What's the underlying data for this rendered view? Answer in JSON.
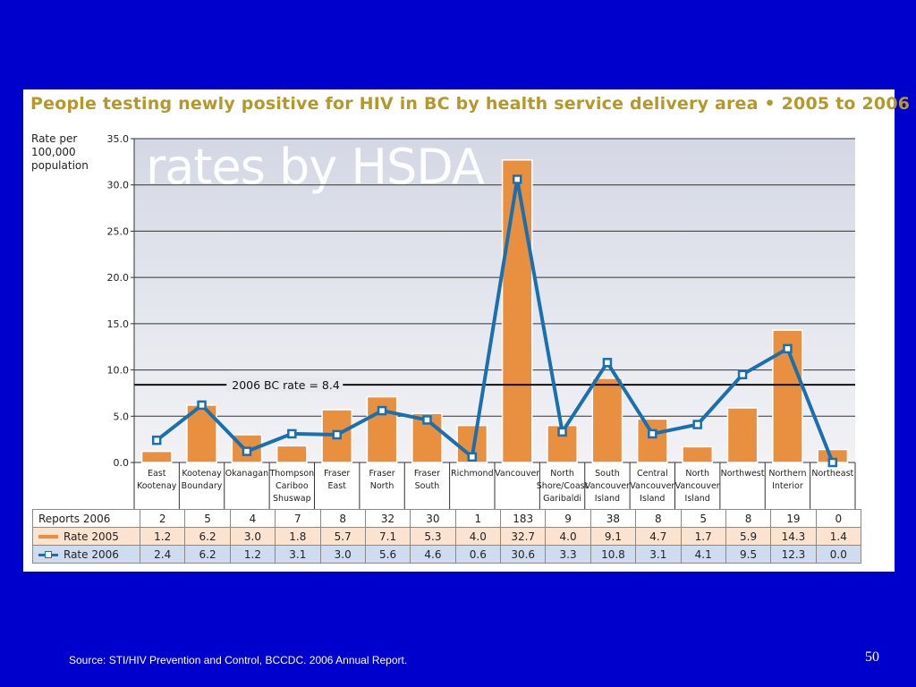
{
  "slide": {
    "source": "Source: STI/HIV Prevention and Control, BCCDC. 2006 Annual Report.",
    "page_number": "50"
  },
  "chart_data": {
    "type": "bar",
    "title": "People testing newly positive for HIV in BC by health service delivery area • 2005 to 2006",
    "ylabel": "Rate per 100,000 population",
    "watermark": "rates by HSDA",
    "ylim": [
      0,
      35
    ],
    "yticks": [
      "0.0",
      "5.0",
      "10.0",
      "15.0",
      "20.0",
      "25.0",
      "30.0",
      "35.0"
    ],
    "grid": true,
    "reference_line": {
      "value": 8.4,
      "label": "2006 BC rate = 8.4"
    },
    "categories": [
      [
        "East",
        "Kootenay"
      ],
      [
        "Kootenay",
        "Boundary"
      ],
      [
        "Okanagan"
      ],
      [
        "Thompson",
        "Cariboo",
        "Shuswap"
      ],
      [
        "Fraser",
        "East"
      ],
      [
        "Fraser",
        "North"
      ],
      [
        "Fraser",
        "South"
      ],
      [
        "Richmond"
      ],
      [
        "Vancouver"
      ],
      [
        "North",
        "Shore/Coast",
        "Garibaldi"
      ],
      [
        "South",
        "Vancouver",
        "Island"
      ],
      [
        "Central",
        "Vancouver",
        "Island"
      ],
      [
        "North",
        "Vancouver",
        "Island"
      ],
      [
        "Northwest"
      ],
      [
        "Northern",
        "Interior"
      ],
      [
        "Northeast"
      ]
    ],
    "series": [
      {
        "name": "Rate 2005",
        "type": "bar",
        "color": "#e89040",
        "values": [
          1.2,
          6.2,
          3.0,
          1.8,
          5.7,
          7.1,
          5.3,
          4.0,
          32.7,
          4.0,
          9.1,
          4.7,
          1.7,
          5.9,
          14.3,
          1.4
        ],
        "display": [
          "1.2",
          "6.2",
          "3.0",
          "1.8",
          "5.7",
          "7.1",
          "5.3",
          "4.0",
          "32.7",
          "4.0",
          "9.1",
          "4.7",
          "1.7",
          "5.9",
          "14.3",
          "1.4"
        ]
      },
      {
        "name": "Rate 2006",
        "type": "line",
        "color": "#1870b0",
        "values": [
          2.4,
          6.2,
          1.2,
          3.1,
          3.0,
          5.6,
          4.6,
          0.6,
          30.6,
          3.3,
          10.8,
          3.1,
          4.1,
          9.5,
          12.3,
          0.0
        ],
        "display": [
          "2.4",
          "6.2",
          "1.2",
          "3.1",
          "3.0",
          "5.6",
          "4.6",
          "0.6",
          "30.6",
          "3.3",
          "10.8",
          "3.1",
          "4.1",
          "9.5",
          "12.3",
          "0.0"
        ]
      }
    ],
    "table": {
      "reports_label": "Reports 2006",
      "reports": [
        "2",
        "5",
        "4",
        "7",
        "8",
        "32",
        "30",
        "1",
        "183",
        "9",
        "38",
        "8",
        "5",
        "8",
        "19",
        "0"
      ]
    }
  }
}
